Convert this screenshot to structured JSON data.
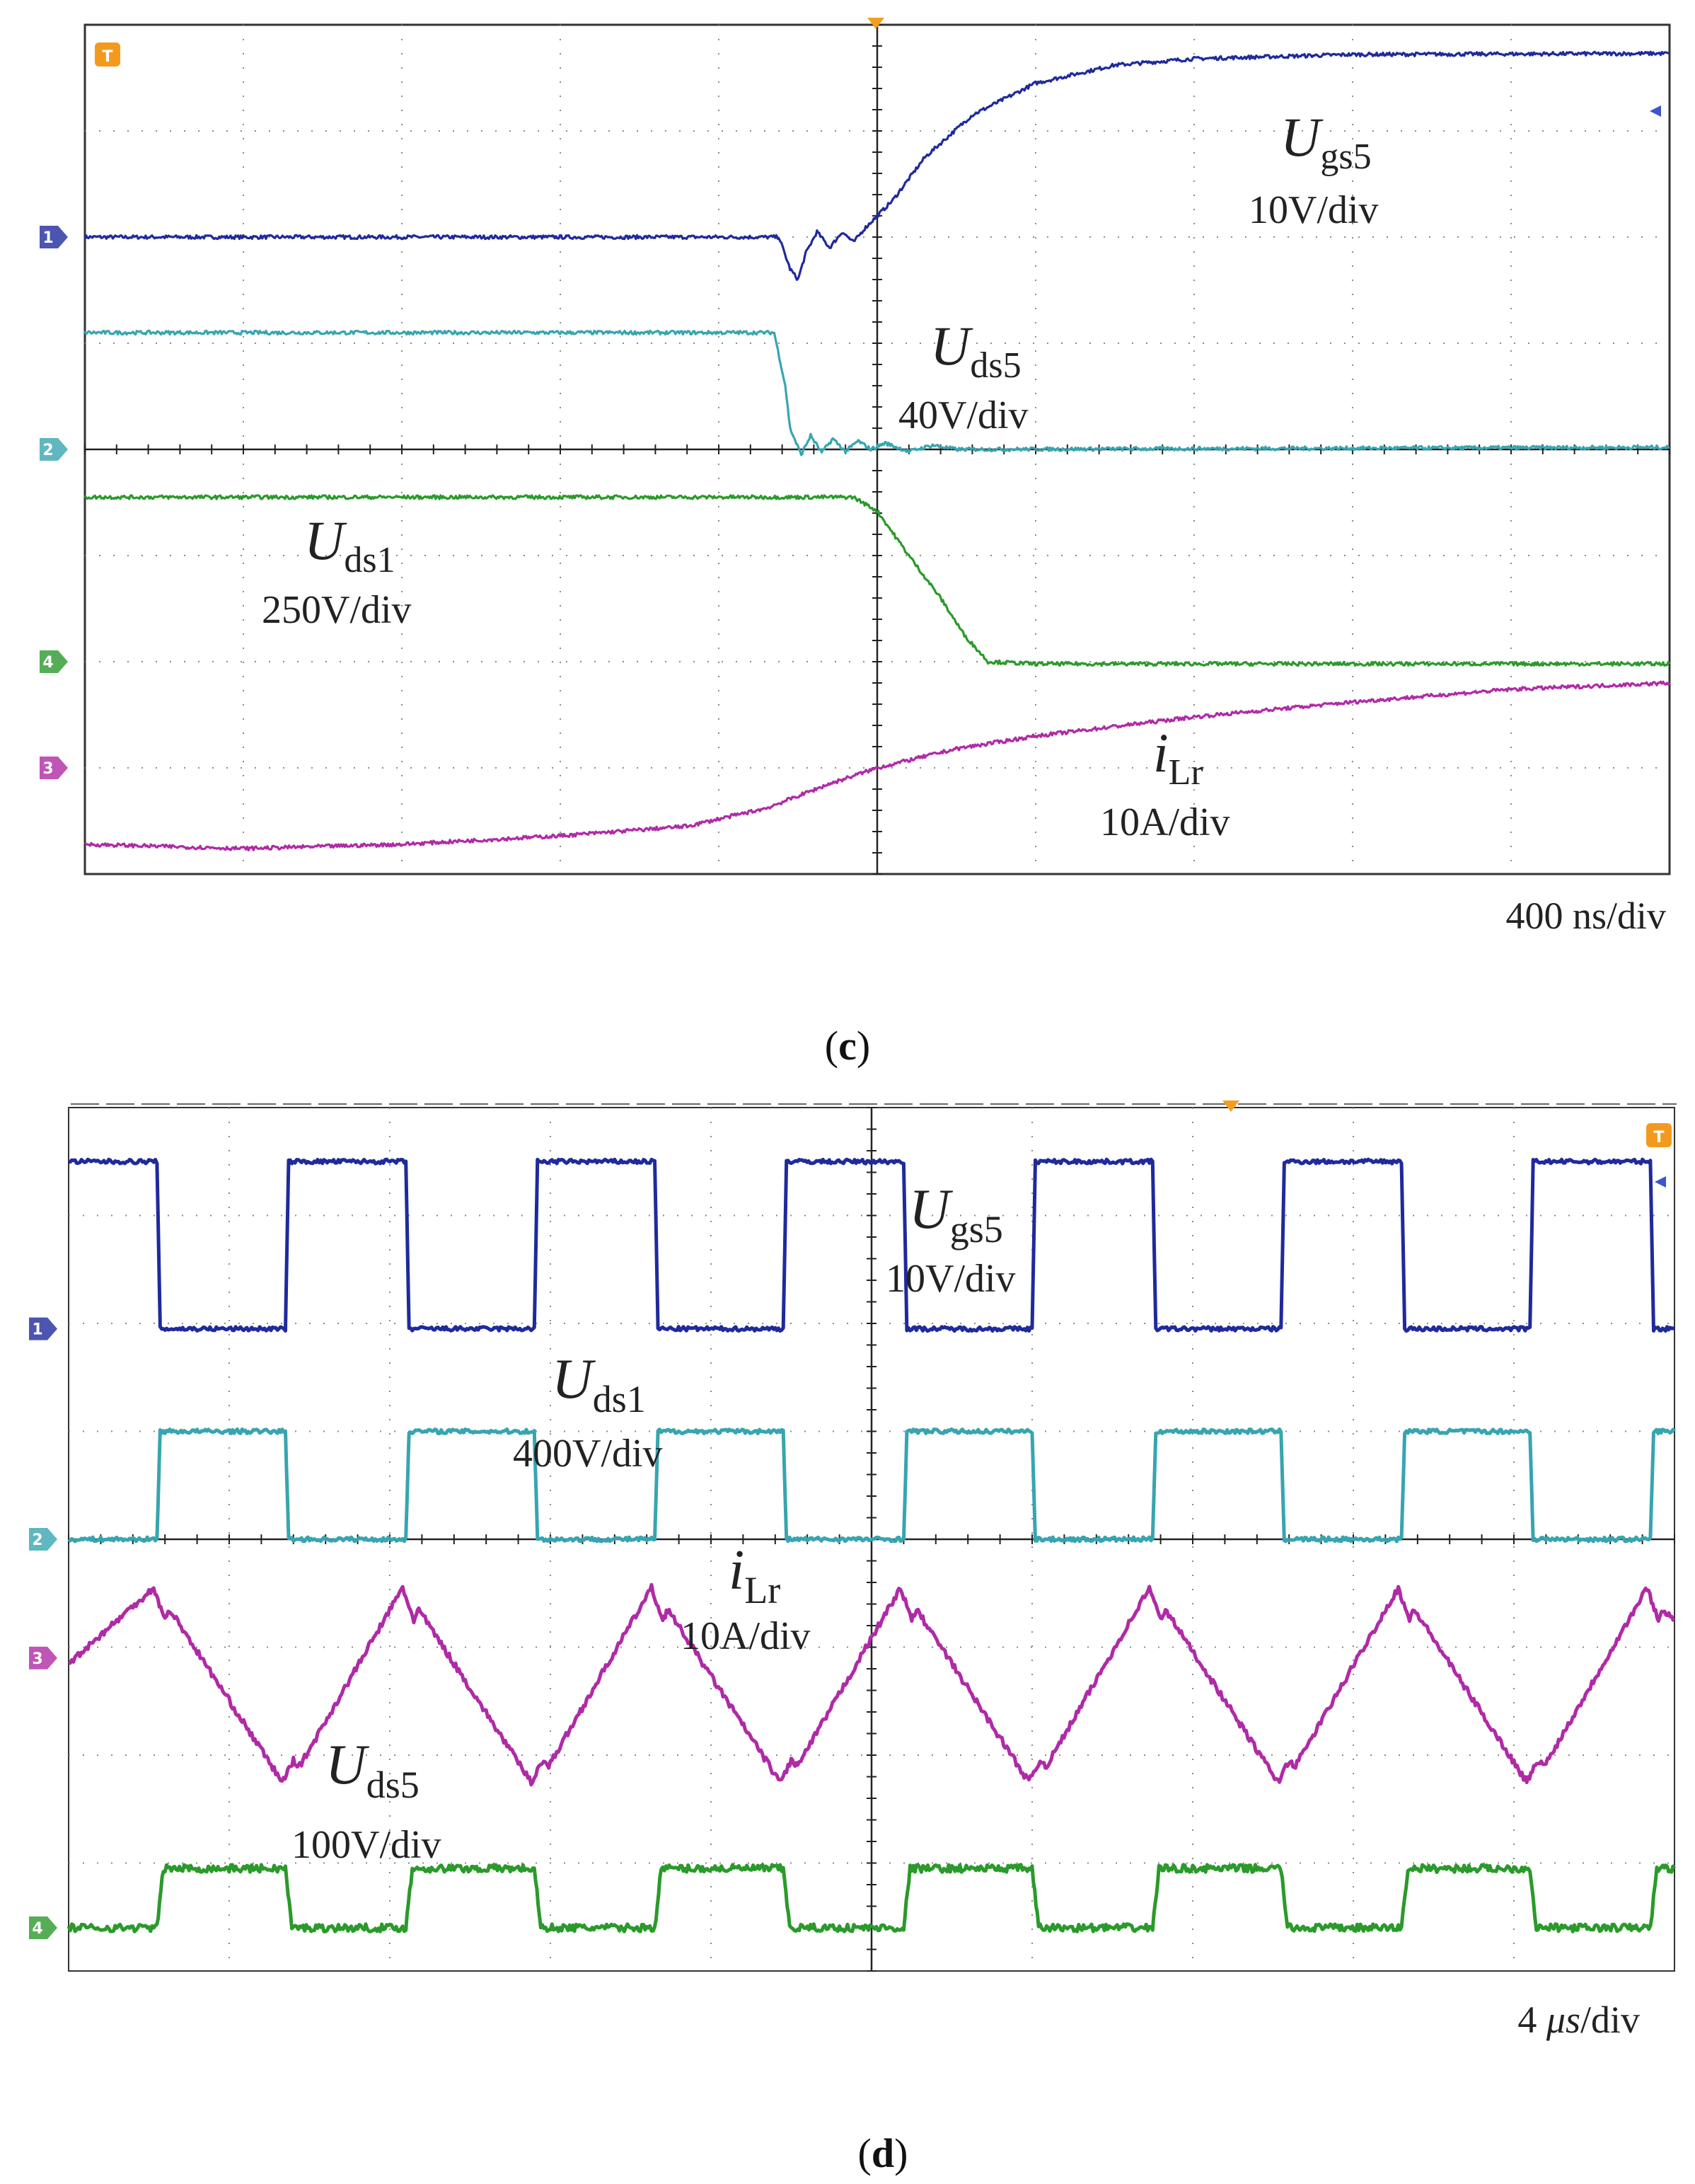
{
  "chart_data": [
    {
      "type": "line",
      "panel": "c",
      "caption": "(c)",
      "caption_letter": "c",
      "timebase": "400 ns/div",
      "x": {
        "unit": "div",
        "range": [
          0,
          10
        ],
        "major_divisions": 10,
        "trigger_at": 5
      },
      "y": {
        "unit": "div",
        "range": [
          0,
          8
        ],
        "major_divisions": 8
      },
      "trigger_marker": "T",
      "series": [
        {
          "name": "Ugs5",
          "label_main": "U",
          "label_sub": "gs5",
          "scale": "10V/div",
          "channel": "1",
          "color": "#1f2a9c",
          "points": [
            [
              0,
              6.0
            ],
            [
              4.38,
              6.0
            ],
            [
              4.45,
              5.7
            ],
            [
              4.5,
              5.6
            ],
            [
              4.55,
              5.85
            ],
            [
              4.62,
              6.05
            ],
            [
              4.7,
              5.9
            ],
            [
              4.78,
              6.05
            ],
            [
              4.85,
              5.95
            ],
            [
              4.92,
              6.08
            ],
            [
              5.0,
              6.2
            ],
            [
              5.1,
              6.35
            ],
            [
              5.3,
              6.75
            ],
            [
              5.6,
              7.15
            ],
            [
              6.0,
              7.45
            ],
            [
              6.5,
              7.62
            ],
            [
              7.0,
              7.68
            ],
            [
              8.0,
              7.72
            ],
            [
              10.0,
              7.73
            ]
          ]
        },
        {
          "name": "Uds5",
          "label_main": "U",
          "label_sub": "ds5",
          "scale": "40V/div",
          "channel": "2",
          "color": "#37a5b0",
          "points": [
            [
              0,
              5.1
            ],
            [
              4.35,
              5.1
            ],
            [
              4.42,
              4.6
            ],
            [
              4.45,
              4.2
            ],
            [
              4.52,
              3.95
            ],
            [
              4.58,
              4.13
            ],
            [
              4.65,
              3.97
            ],
            [
              4.72,
              4.1
            ],
            [
              4.8,
              3.98
            ],
            [
              4.88,
              4.08
            ],
            [
              4.96,
              4.0
            ],
            [
              5.05,
              4.06
            ],
            [
              5.2,
              3.98
            ],
            [
              5.35,
              4.04
            ],
            [
              5.5,
              4.0
            ],
            [
              10.0,
              4.02
            ]
          ]
        },
        {
          "name": "Uds1",
          "label_main": "U",
          "label_sub": "ds1",
          "scale": "250V/div",
          "channel": "4",
          "color": "#2a9a2a",
          "points": [
            [
              0,
              3.55
            ],
            [
              4.85,
              3.55
            ],
            [
              5.0,
              3.42
            ],
            [
              5.2,
              3.0
            ],
            [
              5.4,
              2.6
            ],
            [
              5.55,
              2.25
            ],
            [
              5.7,
              2.0
            ],
            [
              6.0,
              1.98
            ],
            [
              10.0,
              1.98
            ]
          ]
        },
        {
          "name": "iLr",
          "label_main": "i",
          "label_sub": "Lr",
          "scale": "10A/div",
          "channel": "3",
          "color": "#b02aa6",
          "points": [
            [
              0,
              0.28
            ],
            [
              1.0,
              0.24
            ],
            [
              2.0,
              0.28
            ],
            [
              3.0,
              0.36
            ],
            [
              3.8,
              0.45
            ],
            [
              4.3,
              0.62
            ],
            [
              4.7,
              0.85
            ],
            [
              5.0,
              1.0
            ],
            [
              5.5,
              1.18
            ],
            [
              6.0,
              1.3
            ],
            [
              7.0,
              1.48
            ],
            [
              8.0,
              1.62
            ],
            [
              9.0,
              1.74
            ],
            [
              10.0,
              1.8
            ]
          ]
        }
      ]
    },
    {
      "type": "line",
      "panel": "d",
      "caption": "(d)",
      "caption_letter": "d",
      "timebase_num": "4",
      "timebase_unit": "μs",
      "timebase_rest": "/div",
      "x": {
        "unit": "div",
        "range": [
          0,
          10
        ],
        "major_divisions": 10,
        "trigger_at": 5
      },
      "y": {
        "unit": "div",
        "range": [
          0,
          8
        ],
        "major_divisions": 8
      },
      "trigger_marker": "T",
      "switching_edges": [
        0.55,
        1.35,
        2.1,
        2.9,
        3.65,
        4.45,
        5.2,
        6.0,
        6.75,
        7.55,
        8.3,
        9.1,
        9.85
      ],
      "series": [
        {
          "name": "Ugs5",
          "label_main": "U",
          "label_sub": "gs5",
          "scale": "10V/div",
          "channel": "1",
          "color": "#1f2a9c",
          "levels": {
            "low": 5.95,
            "high": 7.5
          },
          "start_state": "high"
        },
        {
          "name": "Uds1",
          "label_main": "U",
          "label_sub": "ds1",
          "scale": "400V/div",
          "channel": "2",
          "color": "#37a5b0",
          "levels": {
            "low": 4.0,
            "high": 5.0
          },
          "start_state": "low"
        },
        {
          "name": "iLr",
          "label_main": "i",
          "label_sub": "Lr",
          "scale": "10A/div",
          "channel": "3",
          "color": "#b02aa6",
          "levels": {
            "min": 1.75,
            "max": 3.55
          },
          "shape": "triangular"
        },
        {
          "name": "Uds5",
          "label_main": "U",
          "label_sub": "ds5",
          "scale": "100V/div",
          "channel": "4",
          "color": "#2a9a2a",
          "levels": {
            "low": 0.4,
            "high": 0.95
          },
          "start_state": "low"
        }
      ]
    }
  ]
}
